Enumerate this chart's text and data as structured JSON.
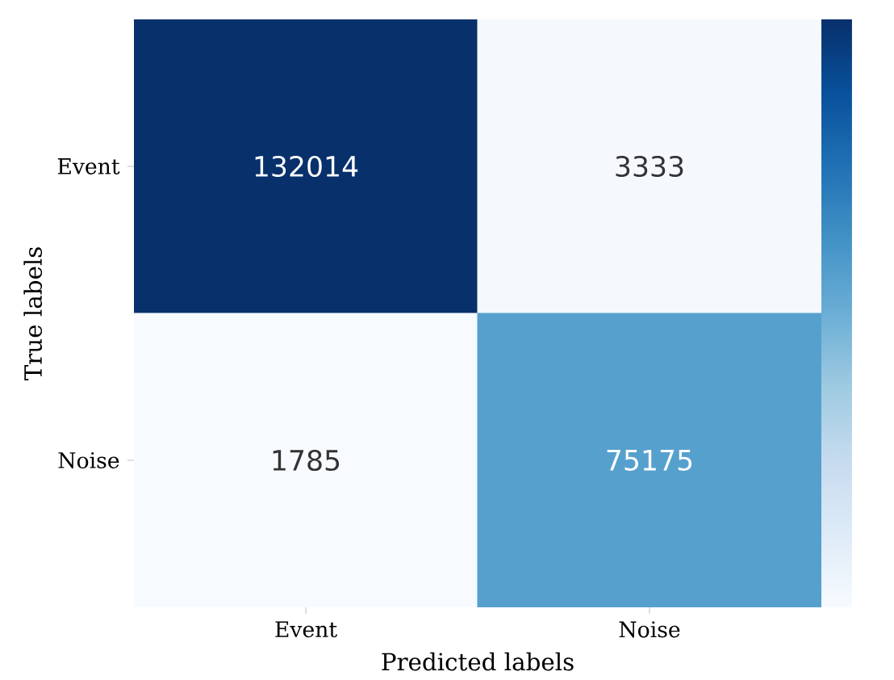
{
  "chart_data": {
    "type": "heatmap",
    "xlabel": "Predicted labels",
    "ylabel": "True labels",
    "categories": [
      "Event",
      "Noise"
    ],
    "y_categories": [
      "Event",
      "Noise"
    ],
    "cells": [
      [
        132014,
        3333
      ],
      [
        1785,
        75175
      ]
    ],
    "data_labels": true
  }
}
